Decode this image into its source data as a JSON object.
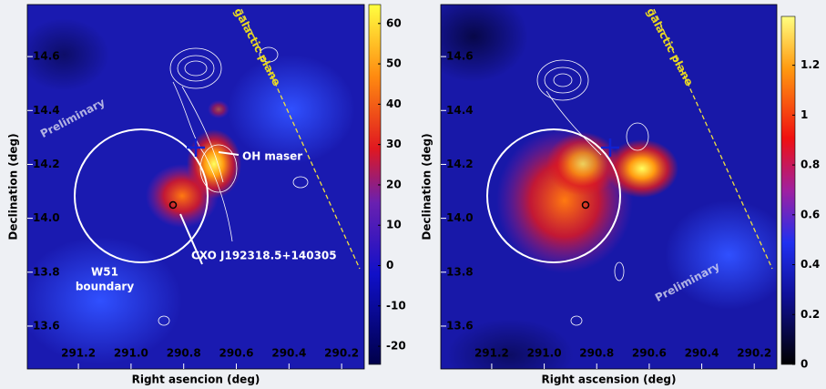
{
  "chart_data": [
    {
      "type": "heatmap",
      "x_label": "Right asencion (deg)",
      "y_label": "Declination (deg)",
      "xlim": [
        291.394,
        290.114
      ],
      "ylim": [
        13.441,
        14.793
      ],
      "xticks": [
        291.2,
        {
          "value": 291.0,
          "label": "291.0"
        },
        290.8,
        290.6,
        290.4,
        290.2
      ],
      "yticks": [
        {
          "value": 13.6,
          "label": "13.6"
        },
        {
          "value": 13.8,
          "label": "13.8"
        },
        {
          "value": 14.0,
          "label": "14.0"
        },
        {
          "value": 14.2,
          "label": "14.2"
        },
        {
          "value": 14.4,
          "label": "14.4"
        },
        {
          "value": 14.6,
          "label": "14.6"
        }
      ],
      "clim": [
        -24.5,
        64.7
      ],
      "cticks": [
        -20,
        -10,
        0,
        10,
        20,
        30,
        40,
        50,
        60
      ],
      "annotations": [
        "Preliminary",
        "galactic plane",
        "OH maser",
        "W51",
        "boundary",
        "CXO J192318.5+140305"
      ]
    },
    {
      "type": "heatmap",
      "x_label": "Right ascension (deg)",
      "y_label": "Declination (deg)",
      "xlim": [
        291.394,
        290.114
      ],
      "ylim": [
        13.441,
        14.793
      ],
      "xticks": [
        291.2,
        {
          "value": 291.0,
          "label": "291.0"
        },
        290.8,
        290.6,
        290.4,
        290.2
      ],
      "yticks": [
        {
          "value": 13.6,
          "label": "13.6"
        },
        {
          "value": 13.8,
          "label": "13.8"
        },
        {
          "value": 14.0,
          "label": "14.0"
        },
        {
          "value": 14.2,
          "label": "14.2"
        },
        {
          "value": 14.4,
          "label": "14.4"
        },
        {
          "value": 14.6,
          "label": "14.6"
        }
      ],
      "clim": [
        0,
        1.396
      ],
      "cticks": [
        0,
        0.2,
        0.4,
        0.6,
        0.8,
        1,
        1.2
      ],
      "annotations": [
        "galactic plane",
        "Preliminary"
      ]
    }
  ]
}
